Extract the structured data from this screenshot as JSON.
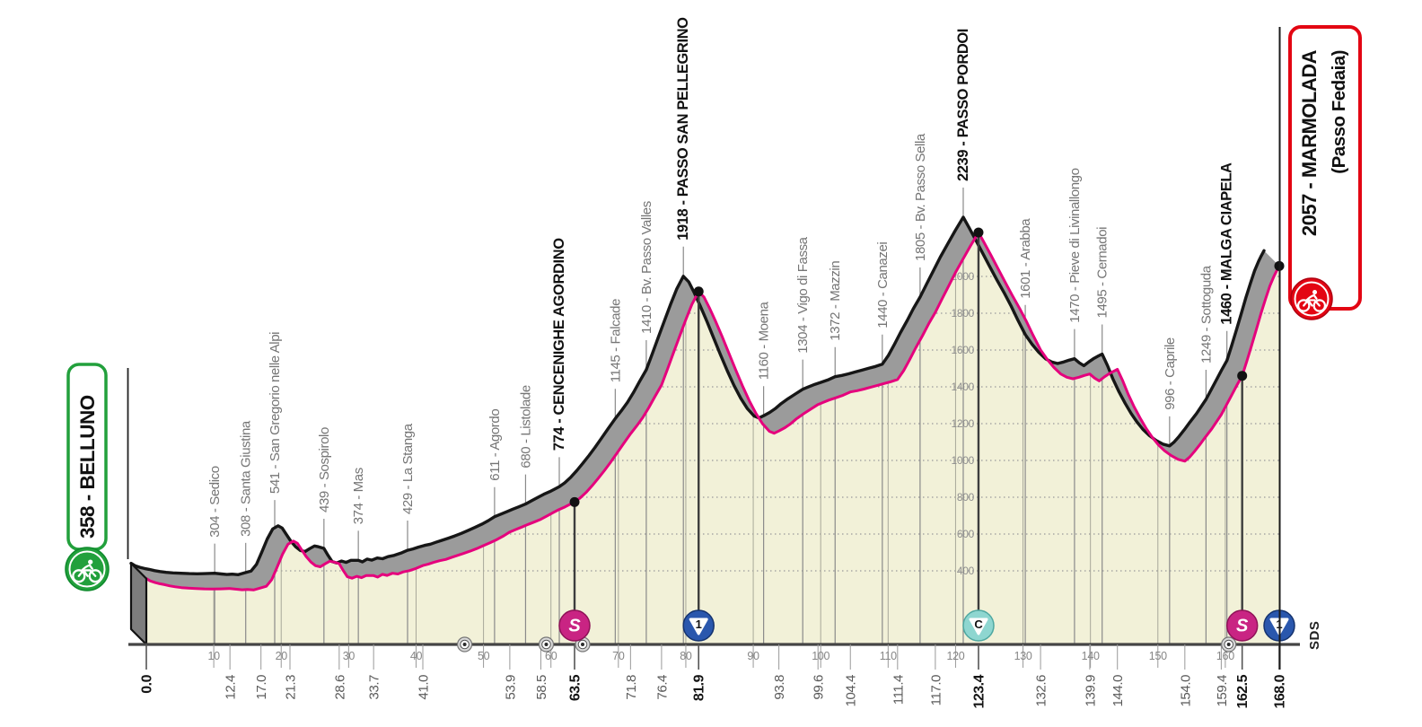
{
  "chart_data": {
    "type": "area",
    "x_unit": "km",
    "y_unit": "m",
    "x_range": [
      0,
      168
    ],
    "km_ticks": [
      10,
      20,
      30,
      40,
      50,
      60,
      70,
      80,
      90,
      100,
      110,
      120,
      130,
      140,
      150,
      160
    ],
    "elevation_gridlines": [
      400,
      600,
      800,
      1000,
      1200,
      1400,
      1600,
      1800,
      2000
    ],
    "start": {
      "km": 0.0,
      "elevation": 358,
      "label": "358 - BELLUNO"
    },
    "finish": {
      "km": 168.0,
      "elevation": 2057,
      "label_line1": "2057 - MARMOLADA",
      "label_line2": "(Passo Fedaia)"
    },
    "credit": "SDS",
    "waypoints": [
      {
        "km": 12.4,
        "elevation": 304,
        "name": "Sedico",
        "major": false
      },
      {
        "km": 17.0,
        "elevation": 308,
        "name": "Santa Giustina",
        "major": false
      },
      {
        "km": 21.3,
        "elevation": 541,
        "name": "San Gregorio nelle Alpi",
        "major": false
      },
      {
        "km": 28.6,
        "elevation": 439,
        "name": "Sospirolo",
        "major": false
      },
      {
        "km": 33.7,
        "elevation": 374,
        "name": "Mas",
        "major": false
      },
      {
        "km": 41.0,
        "elevation": 429,
        "name": "La Stanga",
        "major": false
      },
      {
        "km": 53.9,
        "elevation": 611,
        "name": "Agordo",
        "major": false
      },
      {
        "km": 58.5,
        "elevation": 680,
        "name": "Listolade",
        "major": false
      },
      {
        "km": 63.5,
        "elevation": 774,
        "name": "CENCENIGHE AGORDINO",
        "major": true
      },
      {
        "km": 71.8,
        "elevation": 1145,
        "name": "Falcade",
        "major": false
      },
      {
        "km": 76.4,
        "elevation": 1410,
        "name": "Bv. Passo Valles",
        "major": false
      },
      {
        "km": 81.9,
        "elevation": 1918,
        "name": "PASSO SAN PELLEGRINO",
        "major": true
      },
      {
        "km": 93.8,
        "elevation": 1160,
        "name": "Moena",
        "major": false
      },
      {
        "km": 99.6,
        "elevation": 1304,
        "name": "Vigo di Fassa",
        "major": false
      },
      {
        "km": 104.4,
        "elevation": 1372,
        "name": "Mazzin",
        "major": false
      },
      {
        "km": 111.4,
        "elevation": 1440,
        "name": "Canazei",
        "major": false
      },
      {
        "km": 117.0,
        "elevation": 1805,
        "name": "Bv. Passo Sella",
        "major": false
      },
      {
        "km": 123.4,
        "elevation": 2239,
        "name": "PASSO PORDOI",
        "major": true
      },
      {
        "km": 132.6,
        "elevation": 1601,
        "name": "Arabba",
        "major": false
      },
      {
        "km": 139.9,
        "elevation": 1470,
        "name": "Pieve di Livinallongo",
        "major": false
      },
      {
        "km": 144.0,
        "elevation": 1495,
        "name": "Cernadoi",
        "major": false
      },
      {
        "km": 154.0,
        "elevation": 996,
        "name": "Caprile",
        "major": false
      },
      {
        "km": 159.4,
        "elevation": 1249,
        "name": "Sottoguda",
        "major": false
      },
      {
        "km": 162.5,
        "elevation": 1460,
        "name": "MALGA CIAPELA",
        "major": true
      }
    ],
    "markers": [
      {
        "km": 63.5,
        "elevation": 774,
        "type": "sprint",
        "letter": "S"
      },
      {
        "km": 81.9,
        "elevation": 1918,
        "type": "time_check",
        "letter": "1"
      },
      {
        "km": 123.4,
        "elevation": 2239,
        "type": "cima_coppi",
        "letter": "C"
      },
      {
        "km": 162.5,
        "elevation": 1460,
        "type": "sprint",
        "letter": "S"
      },
      {
        "km": 168.0,
        "elevation": 2057,
        "type": "time_check",
        "letter": "1"
      }
    ],
    "bold_distance_labels_km": [
      0.0,
      63.5,
      81.9,
      123.4,
      162.5,
      168.0
    ],
    "tunnel_markers_km": [
      47.2,
      59.3,
      64.7,
      160.5
    ],
    "colors": {
      "profile_line": "#e5007d",
      "profile_fill": "#f2f1d8",
      "band": "#9b9b9b",
      "band_top": "#161616",
      "sprint": "#c92483",
      "time_check": "#2a57ad",
      "cima_coppi": "#8ed6d0",
      "start_accent": "#22a03c",
      "finish_accent": "#e30613",
      "grid": "#9a9a9a"
    },
    "profile_points": [
      [
        0,
        358
      ],
      [
        0.6,
        345
      ],
      [
        1.3,
        336
      ],
      [
        2,
        330
      ],
      [
        2.7,
        325
      ],
      [
        3.5,
        318
      ],
      [
        4.3,
        313
      ],
      [
        5.2,
        309
      ],
      [
        6.2,
        306
      ],
      [
        7.4,
        304
      ],
      [
        8.6,
        302
      ],
      [
        9.8,
        301
      ],
      [
        11,
        302
      ],
      [
        12.4,
        304
      ],
      [
        13.4,
        300
      ],
      [
        14.2,
        297
      ],
      [
        15,
        299
      ],
      [
        15.9,
        296
      ],
      [
        17,
        308
      ],
      [
        17.8,
        316
      ],
      [
        18.6,
        352
      ],
      [
        19.4,
        420
      ],
      [
        20.2,
        490
      ],
      [
        21,
        545
      ],
      [
        21.8,
        562
      ],
      [
        22.4,
        550
      ],
      [
        23,
        516
      ],
      [
        23.7,
        478
      ],
      [
        24.4,
        448
      ],
      [
        25.1,
        428
      ],
      [
        25.8,
        422
      ],
      [
        26.5,
        438
      ],
      [
        27.2,
        452
      ],
      [
        27.8,
        448
      ],
      [
        28.6,
        439
      ],
      [
        29.2,
        402
      ],
      [
        29.8,
        368
      ],
      [
        30.5,
        360
      ],
      [
        31.2,
        370
      ],
      [
        31.9,
        363
      ],
      [
        32.6,
        374
      ],
      [
        33.7,
        374
      ],
      [
        34.3,
        366
      ],
      [
        35,
        381
      ],
      [
        35.7,
        375
      ],
      [
        36.5,
        387
      ],
      [
        37.3,
        383
      ],
      [
        38.1,
        394
      ],
      [
        39,
        401
      ],
      [
        40,
        413
      ],
      [
        41,
        429
      ],
      [
        41.8,
        436
      ],
      [
        42.6,
        446
      ],
      [
        43.5,
        455
      ],
      [
        44.4,
        462
      ],
      [
        45.2,
        472
      ],
      [
        46,
        482
      ],
      [
        47,
        494
      ],
      [
        48,
        507
      ],
      [
        49,
        521
      ],
      [
        50,
        537
      ],
      [
        51,
        553
      ],
      [
        52,
        570
      ],
      [
        53,
        590
      ],
      [
        53.9,
        611
      ],
      [
        54.8,
        625
      ],
      [
        55.7,
        638
      ],
      [
        56.6,
        652
      ],
      [
        57.5,
        665
      ],
      [
        58.5,
        680
      ],
      [
        59.4,
        698
      ],
      [
        60.3,
        716
      ],
      [
        61.2,
        733
      ],
      [
        62.1,
        748
      ],
      [
        63.5,
        774
      ],
      [
        64.3,
        795
      ],
      [
        65.2,
        826
      ],
      [
        66.1,
        862
      ],
      [
        67,
        902
      ],
      [
        67.9,
        944
      ],
      [
        68.8,
        988
      ],
      [
        69.7,
        1035
      ],
      [
        70.7,
        1088
      ],
      [
        71.8,
        1145
      ],
      [
        72.7,
        1187
      ],
      [
        73.6,
        1232
      ],
      [
        74.5,
        1286
      ],
      [
        75.4,
        1346
      ],
      [
        76.4,
        1410
      ],
      [
        77.3,
        1498
      ],
      [
        78.2,
        1588
      ],
      [
        79.1,
        1677
      ],
      [
        80,
        1766
      ],
      [
        80.9,
        1848
      ],
      [
        81.9,
        1918
      ],
      [
        82.7,
        1888
      ],
      [
        83.5,
        1830
      ],
      [
        84.4,
        1757
      ],
      [
        85.4,
        1672
      ],
      [
        86.4,
        1582
      ],
      [
        87.4,
        1492
      ],
      [
        88.4,
        1405
      ],
      [
        89.4,
        1325
      ],
      [
        90.4,
        1255
      ],
      [
        91.4,
        1198
      ],
      [
        92.4,
        1158
      ],
      [
        93.1,
        1148
      ],
      [
        93.8,
        1160
      ],
      [
        94.7,
        1178
      ],
      [
        95.5,
        1198
      ],
      [
        96.4,
        1226
      ],
      [
        97.4,
        1252
      ],
      [
        98.5,
        1278
      ],
      [
        99.6,
        1304
      ],
      [
        100.4,
        1316
      ],
      [
        101.2,
        1328
      ],
      [
        102.2,
        1340
      ],
      [
        103.3,
        1354
      ],
      [
        104.4,
        1372
      ],
      [
        105.4,
        1379
      ],
      [
        106.4,
        1388
      ],
      [
        107.4,
        1398
      ],
      [
        108.4,
        1408
      ],
      [
        109.4,
        1418
      ],
      [
        110.4,
        1428
      ],
      [
        111.4,
        1440
      ],
      [
        112.3,
        1488
      ],
      [
        113.2,
        1548
      ],
      [
        114.1,
        1612
      ],
      [
        115.1,
        1678
      ],
      [
        116,
        1742
      ],
      [
        117,
        1805
      ],
      [
        118,
        1878
      ],
      [
        119,
        1950
      ],
      [
        120,
        2022
      ],
      [
        121.1,
        2094
      ],
      [
        122.2,
        2166
      ],
      [
        123.4,
        2239
      ],
      [
        124.3,
        2180
      ],
      [
        125.3,
        2112
      ],
      [
        126.3,
        2042
      ],
      [
        127.3,
        1972
      ],
      [
        128.4,
        1898
      ],
      [
        129.5,
        1826
      ],
      [
        130.5,
        1756
      ],
      [
        131.5,
        1680
      ],
      [
        132.6,
        1601
      ],
      [
        133.6,
        1549
      ],
      [
        134.6,
        1505
      ],
      [
        135.6,
        1470
      ],
      [
        136.5,
        1452
      ],
      [
        137.4,
        1444
      ],
      [
        138.3,
        1452
      ],
      [
        139.1,
        1462
      ],
      [
        139.9,
        1470
      ],
      [
        140.6,
        1448
      ],
      [
        141.3,
        1432
      ],
      [
        142,
        1452
      ],
      [
        142.8,
        1472
      ],
      [
        143.4,
        1484
      ],
      [
        144,
        1495
      ],
      [
        144.8,
        1432
      ],
      [
        145.6,
        1360
      ],
      [
        146.5,
        1290
      ],
      [
        147.4,
        1228
      ],
      [
        148.3,
        1172
      ],
      [
        149.2,
        1124
      ],
      [
        150.1,
        1084
      ],
      [
        151,
        1052
      ],
      [
        152,
        1026
      ],
      [
        153,
        1006
      ],
      [
        154,
        996
      ],
      [
        154.7,
        1018
      ],
      [
        155.4,
        1048
      ],
      [
        156.2,
        1085
      ],
      [
        157,
        1125
      ],
      [
        158,
        1172
      ],
      [
        159.4,
        1249
      ],
      [
        160.1,
        1297
      ],
      [
        160.9,
        1352
      ],
      [
        161.7,
        1408
      ],
      [
        162.5,
        1460
      ],
      [
        163.2,
        1540
      ],
      [
        163.9,
        1625
      ],
      [
        164.6,
        1712
      ],
      [
        165.3,
        1800
      ],
      [
        166,
        1882
      ],
      [
        166.6,
        1948
      ],
      [
        167.2,
        2000
      ],
      [
        167.6,
        2030
      ],
      [
        168,
        2057
      ]
    ]
  }
}
